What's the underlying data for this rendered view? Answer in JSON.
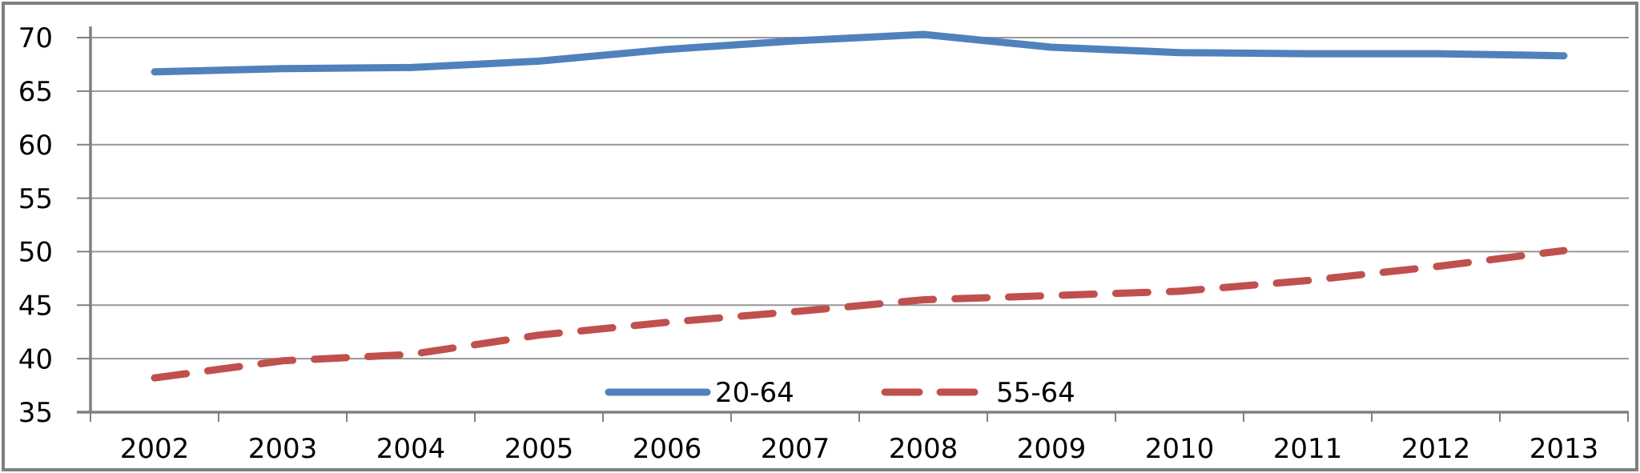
{
  "chart_data": {
    "type": "line",
    "title": "",
    "xlabel": "",
    "ylabel": "",
    "categories": [
      "2002",
      "2003",
      "2004",
      "2005",
      "2006",
      "2007",
      "2008",
      "2009",
      "2010",
      "2011",
      "2012",
      "2013"
    ],
    "series": [
      {
        "name": "20-64",
        "style": "solid",
        "color": "#4F81BD",
        "values": [
          66.8,
          67.1,
          67.2,
          67.8,
          68.9,
          69.7,
          70.3,
          69.1,
          68.6,
          68.5,
          68.5,
          68.3
        ]
      },
      {
        "name": "55-64",
        "style": "dashed",
        "color": "#C0504D",
        "values": [
          38.2,
          39.8,
          40.4,
          42.2,
          43.4,
          44.4,
          45.5,
          45.9,
          46.3,
          47.3,
          48.6,
          50.1
        ]
      }
    ],
    "ylim": [
      35,
      70
    ],
    "yticks": [
      35,
      40,
      45,
      50,
      55,
      60,
      65,
      70
    ],
    "grid": true,
    "legend_position": "inside-bottom-center",
    "colors": {
      "axis": "#808080",
      "gridline": "#969696",
      "text": "#000000",
      "background": "#FFFFFF",
      "frame_border": "#7F7F7F"
    }
  }
}
